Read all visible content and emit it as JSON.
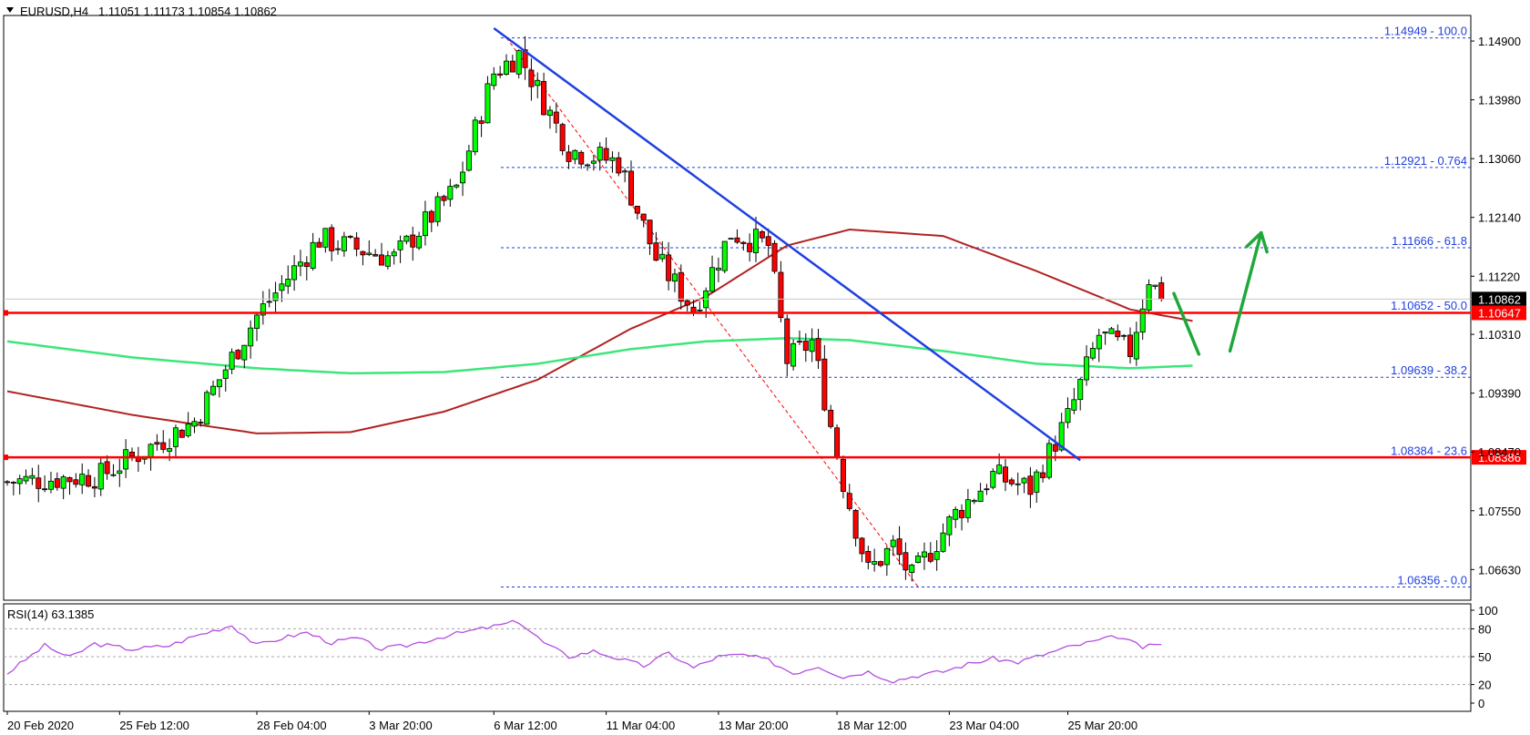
{
  "header": {
    "symbol_label": "EURUSD,H4",
    "ohlc": "1.11051 1.11173 1.10854 1.10862"
  },
  "colors": {
    "bull": "#00ff00",
    "bear": "#ff0000",
    "ma_fast": "#b22222",
    "ma_slow": "#3ce67a",
    "trendline": "#1f3fe0",
    "support": "#ff0000",
    "fib": "#1f3fe0",
    "rsi": "#b44ee0",
    "arrows": "#1fa83a"
  },
  "chart_data": [
    {
      "type": "candlestick",
      "title": "EURUSD,H4",
      "ylim": [
        1.0615,
        1.153
      ],
      "price_ticks": [
        1.149,
        1.1398,
        1.1306,
        1.1214,
        1.1122,
        1.1031,
        1.0939,
        1.0847,
        1.0755,
        1.0663
      ],
      "price_tick_labels": [
        "1.14900",
        "1.13980",
        "1.13060",
        "1.12140",
        "1.11220",
        "1.10310",
        "1.09390",
        "1.08470",
        "1.07550",
        "1.06630"
      ],
      "x_tick_labels": [
        "20 Feb 2020",
        "25 Feb 12:00",
        "28 Feb 04:00",
        "3 Mar 20:00",
        "6 Mar 12:00",
        "11 Mar 04:00",
        "13 Mar 20:00",
        "18 Mar 12:00",
        "23 Mar 04:00",
        "25 Mar 20:00"
      ],
      "last_price_label": "1.10862",
      "key_points": [
        {
          "bar": 0,
          "price": 1.08
        },
        {
          "bar": 15,
          "price": 1.081
        },
        {
          "bar": 30,
          "price": 1.0895
        },
        {
          "bar": 40,
          "price": 1.106
        },
        {
          "bar": 50,
          "price": 1.118
        },
        {
          "bar": 62,
          "price": 1.115
        },
        {
          "bar": 72,
          "price": 1.126
        },
        {
          "bar": 78,
          "price": 1.144
        },
        {
          "bar": 82,
          "price": 1.147
        },
        {
          "bar": 90,
          "price": 1.132
        },
        {
          "bar": 98,
          "price": 1.13
        },
        {
          "bar": 104,
          "price": 1.115
        },
        {
          "bar": 110,
          "price": 1.107
        },
        {
          "bar": 116,
          "price": 1.119
        },
        {
          "bar": 122,
          "price": 1.117
        },
        {
          "bar": 125,
          "price": 1.099
        },
        {
          "bar": 129,
          "price": 1.102
        },
        {
          "bar": 134,
          "price": 1.08
        },
        {
          "bar": 138,
          "price": 1.066
        },
        {
          "bar": 142,
          "price": 1.07
        },
        {
          "bar": 145,
          "price": 1.065
        },
        {
          "bar": 152,
          "price": 1.075
        },
        {
          "bar": 158,
          "price": 1.081
        },
        {
          "bar": 164,
          "price": 1.079
        },
        {
          "bar": 170,
          "price": 1.09
        },
        {
          "bar": 175,
          "price": 1.103
        },
        {
          "bar": 180,
          "price": 1.1005
        },
        {
          "bar": 183,
          "price": 1.112
        },
        {
          "bar": 185,
          "price": 1.1086
        }
      ],
      "ma_fast": {
        "name": "",
        "x": [
          0,
          20,
          40,
          55,
          70,
          85,
          100,
          112,
          125,
          135,
          150,
          165,
          180,
          190
        ],
        "y": [
          1.0942,
          1.0905,
          1.0876,
          1.0878,
          1.091,
          1.096,
          1.104,
          1.109,
          1.117,
          1.1195,
          1.1185,
          1.113,
          1.107,
          1.1052
        ]
      },
      "ma_slow": {
        "name": "",
        "x": [
          0,
          20,
          40,
          55,
          70,
          85,
          100,
          112,
          125,
          135,
          150,
          165,
          180,
          190
        ],
        "y": [
          1.102,
          1.0995,
          1.0978,
          1.097,
          1.0972,
          1.0985,
          1.1008,
          1.102,
          1.1025,
          1.1022,
          1.1005,
          1.0985,
          1.0978,
          1.0982
        ]
      },
      "fibonacci": [
        {
          "price": 1.14949,
          "label": "1.14949 - 100.0"
        },
        {
          "price": 1.12921,
          "label": "1.12921 - 0.764"
        },
        {
          "price": 1.11666,
          "label": "1.11666 - 61.8"
        },
        {
          "price": 1.10652,
          "label": "1.10652 - 50.0"
        },
        {
          "price": 1.09639,
          "label": "1.09639 - 38.2"
        },
        {
          "price": 1.08384,
          "label": "1.08384 - 23.6"
        },
        {
          "price": 1.06356,
          "label": "1.06356 - 0.0"
        }
      ],
      "horizontal_levels": [
        {
          "price": 1.10647,
          "label": "1.10647"
        },
        {
          "price": 1.08386,
          "label": "1.08386"
        }
      ],
      "trendline": {
        "from": {
          "bar": 78,
          "price": 1.151
        },
        "to": {
          "bar": 172,
          "price": 1.0834
        }
      },
      "fib_swing_line": {
        "from": {
          "bar": 80,
          "price": 1.1495
        },
        "to": {
          "bar": 146,
          "price": 1.0636
        }
      },
      "annotation_arrows": [
        {
          "from": {
            "bar": 187,
            "price": 1.1095
          },
          "to": {
            "bar": 191,
            "price": 1.1
          }
        },
        {
          "from": {
            "bar": 196,
            "price": 1.1005
          },
          "to": {
            "bar": 201,
            "price": 1.119
          }
        }
      ]
    },
    {
      "type": "line",
      "title": "RSI(14) 63.1385",
      "ylim": [
        0,
        100
      ],
      "levels": [
        80,
        50,
        20
      ],
      "tick_labels": [
        "100",
        "80",
        "50",
        "20",
        "0"
      ],
      "key_points": [
        {
          "bar": 0,
          "value": 32
        },
        {
          "bar": 6,
          "value": 62
        },
        {
          "bar": 10,
          "value": 49
        },
        {
          "bar": 14,
          "value": 64
        },
        {
          "bar": 20,
          "value": 58
        },
        {
          "bar": 26,
          "value": 62
        },
        {
          "bar": 30,
          "value": 72
        },
        {
          "bar": 36,
          "value": 84
        },
        {
          "bar": 40,
          "value": 62
        },
        {
          "bar": 44,
          "value": 70
        },
        {
          "bar": 48,
          "value": 76
        },
        {
          "bar": 52,
          "value": 65
        },
        {
          "bar": 56,
          "value": 70
        },
        {
          "bar": 60,
          "value": 58
        },
        {
          "bar": 64,
          "value": 62
        },
        {
          "bar": 70,
          "value": 72
        },
        {
          "bar": 76,
          "value": 80
        },
        {
          "bar": 82,
          "value": 88
        },
        {
          "bar": 86,
          "value": 65
        },
        {
          "bar": 90,
          "value": 50
        },
        {
          "bar": 94,
          "value": 56
        },
        {
          "bar": 98,
          "value": 48
        },
        {
          "bar": 102,
          "value": 40
        },
        {
          "bar": 106,
          "value": 54
        },
        {
          "bar": 110,
          "value": 38
        },
        {
          "bar": 114,
          "value": 50
        },
        {
          "bar": 118,
          "value": 52
        },
        {
          "bar": 122,
          "value": 46
        },
        {
          "bar": 126,
          "value": 32
        },
        {
          "bar": 130,
          "value": 40
        },
        {
          "bar": 134,
          "value": 28
        },
        {
          "bar": 138,
          "value": 34
        },
        {
          "bar": 142,
          "value": 24
        },
        {
          "bar": 146,
          "value": 30
        },
        {
          "bar": 150,
          "value": 34
        },
        {
          "bar": 154,
          "value": 42
        },
        {
          "bar": 158,
          "value": 48
        },
        {
          "bar": 162,
          "value": 44
        },
        {
          "bar": 166,
          "value": 52
        },
        {
          "bar": 170,
          "value": 60
        },
        {
          "bar": 174,
          "value": 66
        },
        {
          "bar": 178,
          "value": 72
        },
        {
          "bar": 182,
          "value": 60
        },
        {
          "bar": 185,
          "value": 63
        }
      ]
    }
  ]
}
